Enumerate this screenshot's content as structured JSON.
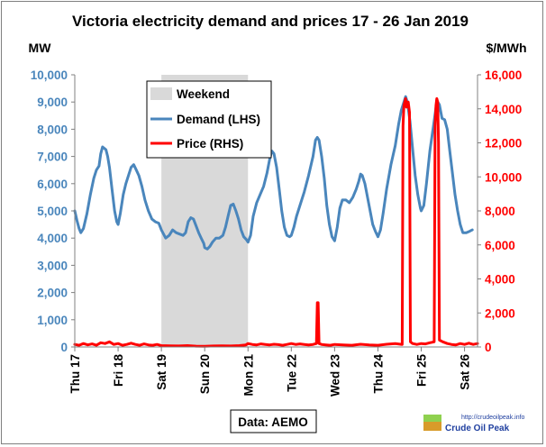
{
  "chart_data": {
    "type": "line",
    "title": "Victoria electricity demand and prices 17 - 26 Jan 2019",
    "y_left_label": "MW",
    "y_right_label": "$/MWh",
    "y_left_lim": [
      0,
      10000
    ],
    "y_right_lim": [
      0,
      16000
    ],
    "y_left_ticks": [
      "0",
      "1,000",
      "2,000",
      "3,000",
      "4,000",
      "5,000",
      "6,000",
      "7,000",
      "8,000",
      "9,000",
      "10,000"
    ],
    "y_right_ticks": [
      "0",
      "2,000",
      "4,000",
      "6,000",
      "8,000",
      "10,000",
      "12,000",
      "14,000",
      "16,000"
    ],
    "x_lim": [
      0,
      9.3
    ],
    "x_ticks": [
      "Thu 17",
      "Fri 18",
      "Sat 19",
      "Sun 20",
      "Mon 21",
      "Tue 22",
      "Wed 23",
      "Thu 24",
      "Fri 25",
      "Sat 26"
    ],
    "grid": false,
    "legend_position": "top-left",
    "weekend_band": {
      "label": "Weekend",
      "start": 2.0,
      "end": 4.0,
      "color": "#d9d9d9"
    },
    "series": [
      {
        "name": "Demand (LHS)",
        "axis": "left",
        "color": "#4a86bc",
        "points": [
          [
            0.0,
            5000
          ],
          [
            0.05,
            4650
          ],
          [
            0.1,
            4350
          ],
          [
            0.14,
            4200
          ],
          [
            0.2,
            4350
          ],
          [
            0.28,
            4900
          ],
          [
            0.36,
            5600
          ],
          [
            0.44,
            6200
          ],
          [
            0.5,
            6500
          ],
          [
            0.56,
            6650
          ],
          [
            0.6,
            7100
          ],
          [
            0.64,
            7350
          ],
          [
            0.68,
            7300
          ],
          [
            0.72,
            7250
          ],
          [
            0.76,
            7000
          ],
          [
            0.8,
            6600
          ],
          [
            0.86,
            5800
          ],
          [
            0.92,
            5000
          ],
          [
            0.97,
            4600
          ],
          [
            1.0,
            4500
          ],
          [
            1.05,
            4900
          ],
          [
            1.12,
            5600
          ],
          [
            1.18,
            6000
          ],
          [
            1.24,
            6300
          ],
          [
            1.3,
            6600
          ],
          [
            1.36,
            6700
          ],
          [
            1.42,
            6500
          ],
          [
            1.48,
            6300
          ],
          [
            1.55,
            5900
          ],
          [
            1.62,
            5400
          ],
          [
            1.7,
            5000
          ],
          [
            1.78,
            4700
          ],
          [
            1.86,
            4600
          ],
          [
            1.94,
            4550
          ],
          [
            2.0,
            4300
          ],
          [
            2.05,
            4150
          ],
          [
            2.1,
            4000
          ],
          [
            2.18,
            4100
          ],
          [
            2.26,
            4300
          ],
          [
            2.34,
            4200
          ],
          [
            2.42,
            4150
          ],
          [
            2.5,
            4100
          ],
          [
            2.56,
            4200
          ],
          [
            2.62,
            4600
          ],
          [
            2.68,
            4750
          ],
          [
            2.74,
            4700
          ],
          [
            2.8,
            4450
          ],
          [
            2.86,
            4200
          ],
          [
            2.92,
            4000
          ],
          [
            2.98,
            3800
          ],
          [
            3.0,
            3650
          ],
          [
            3.06,
            3600
          ],
          [
            3.12,
            3700
          ],
          [
            3.18,
            3850
          ],
          [
            3.26,
            4000
          ],
          [
            3.34,
            4000
          ],
          [
            3.42,
            4100
          ],
          [
            3.48,
            4400
          ],
          [
            3.54,
            4800
          ],
          [
            3.6,
            5200
          ],
          [
            3.66,
            5250
          ],
          [
            3.72,
            5000
          ],
          [
            3.78,
            4700
          ],
          [
            3.84,
            4300
          ],
          [
            3.9,
            4050
          ],
          [
            3.96,
            3950
          ],
          [
            4.0,
            3850
          ],
          [
            4.06,
            4100
          ],
          [
            4.12,
            4800
          ],
          [
            4.2,
            5300
          ],
          [
            4.28,
            5600
          ],
          [
            4.36,
            5900
          ],
          [
            4.44,
            6400
          ],
          [
            4.5,
            6900
          ],
          [
            4.55,
            7200
          ],
          [
            4.6,
            7100
          ],
          [
            4.66,
            6600
          ],
          [
            4.72,
            5800
          ],
          [
            4.78,
            5000
          ],
          [
            4.84,
            4400
          ],
          [
            4.9,
            4100
          ],
          [
            4.96,
            4050
          ],
          [
            5.0,
            4100
          ],
          [
            5.06,
            4400
          ],
          [
            5.12,
            4800
          ],
          [
            5.2,
            5200
          ],
          [
            5.3,
            5700
          ],
          [
            5.4,
            6300
          ],
          [
            5.5,
            7000
          ],
          [
            5.56,
            7600
          ],
          [
            5.6,
            7700
          ],
          [
            5.64,
            7600
          ],
          [
            5.7,
            7000
          ],
          [
            5.76,
            6200
          ],
          [
            5.82,
            5200
          ],
          [
            5.88,
            4500
          ],
          [
            5.94,
            4050
          ],
          [
            6.0,
            3900
          ],
          [
            6.06,
            4400
          ],
          [
            6.12,
            5100
          ],
          [
            6.18,
            5400
          ],
          [
            6.26,
            5400
          ],
          [
            6.34,
            5300
          ],
          [
            6.42,
            5500
          ],
          [
            6.5,
            5800
          ],
          [
            6.56,
            6100
          ],
          [
            6.6,
            6350
          ],
          [
            6.64,
            6300
          ],
          [
            6.7,
            6000
          ],
          [
            6.76,
            5500
          ],
          [
            6.82,
            5000
          ],
          [
            6.88,
            4500
          ],
          [
            6.94,
            4250
          ],
          [
            7.0,
            4050
          ],
          [
            7.06,
            4300
          ],
          [
            7.12,
            4900
          ],
          [
            7.2,
            5800
          ],
          [
            7.3,
            6700
          ],
          [
            7.4,
            7400
          ],
          [
            7.48,
            8200
          ],
          [
            7.54,
            8700
          ],
          [
            7.6,
            9000
          ],
          [
            7.64,
            9200
          ],
          [
            7.68,
            9000
          ],
          [
            7.74,
            8300
          ],
          [
            7.8,
            7300
          ],
          [
            7.86,
            6300
          ],
          [
            7.92,
            5600
          ],
          [
            7.98,
            5100
          ],
          [
            8.0,
            5000
          ],
          [
            8.06,
            5200
          ],
          [
            8.12,
            6000
          ],
          [
            8.2,
            7200
          ],
          [
            8.28,
            8100
          ],
          [
            8.34,
            8800
          ],
          [
            8.38,
            9000
          ],
          [
            8.42,
            8900
          ],
          [
            8.48,
            8400
          ],
          [
            8.54,
            8350
          ],
          [
            8.6,
            8000
          ],
          [
            8.66,
            7200
          ],
          [
            8.72,
            6400
          ],
          [
            8.78,
            5600
          ],
          [
            8.84,
            5000
          ],
          [
            8.9,
            4500
          ],
          [
            8.96,
            4200
          ],
          [
            9.04,
            4200
          ],
          [
            9.12,
            4250
          ],
          [
            9.18,
            4300
          ]
        ]
      },
      {
        "name": "Price (RHS)",
        "axis": "right",
        "color": "#ff0000",
        "points": [
          [
            0.0,
            150
          ],
          [
            0.1,
            100
          ],
          [
            0.2,
            200
          ],
          [
            0.3,
            120
          ],
          [
            0.4,
            180
          ],
          [
            0.5,
            100
          ],
          [
            0.6,
            250
          ],
          [
            0.7,
            200
          ],
          [
            0.8,
            300
          ],
          [
            0.9,
            150
          ],
          [
            1.0,
            200
          ],
          [
            1.1,
            100
          ],
          [
            1.2,
            150
          ],
          [
            1.3,
            220
          ],
          [
            1.4,
            150
          ],
          [
            1.5,
            100
          ],
          [
            1.6,
            180
          ],
          [
            1.7,
            120
          ],
          [
            1.8,
            100
          ],
          [
            1.9,
            150
          ],
          [
            2.0,
            80
          ],
          [
            2.2,
            70
          ],
          [
            2.4,
            60
          ],
          [
            2.6,
            80
          ],
          [
            2.8,
            50
          ],
          [
            3.0,
            40
          ],
          [
            3.2,
            60
          ],
          [
            3.4,
            70
          ],
          [
            3.6,
            60
          ],
          [
            3.8,
            80
          ],
          [
            3.95,
            120
          ],
          [
            4.0,
            200
          ],
          [
            4.1,
            150
          ],
          [
            4.2,
            120
          ],
          [
            4.3,
            180
          ],
          [
            4.4,
            150
          ],
          [
            4.5,
            120
          ],
          [
            4.6,
            160
          ],
          [
            4.7,
            140
          ],
          [
            4.8,
            100
          ],
          [
            4.9,
            150
          ],
          [
            5.0,
            200
          ],
          [
            5.1,
            150
          ],
          [
            5.2,
            180
          ],
          [
            5.3,
            150
          ],
          [
            5.4,
            120
          ],
          [
            5.5,
            150
          ],
          [
            5.58,
            200
          ],
          [
            5.6,
            2600
          ],
          [
            5.62,
            2600
          ],
          [
            5.64,
            200
          ],
          [
            5.7,
            150
          ],
          [
            5.8,
            120
          ],
          [
            5.9,
            100
          ],
          [
            6.0,
            150
          ],
          [
            6.2,
            120
          ],
          [
            6.4,
            100
          ],
          [
            6.6,
            160
          ],
          [
            6.8,
            120
          ],
          [
            7.0,
            100
          ],
          [
            7.2,
            160
          ],
          [
            7.4,
            200
          ],
          [
            7.56,
            150
          ],
          [
            7.58,
            13000
          ],
          [
            7.6,
            14200
          ],
          [
            7.64,
            14600
          ],
          [
            7.66,
            14100
          ],
          [
            7.7,
            14400
          ],
          [
            7.73,
            13800
          ],
          [
            7.75,
            300
          ],
          [
            7.8,
            200
          ],
          [
            7.9,
            150
          ],
          [
            8.0,
            200
          ],
          [
            8.1,
            180
          ],
          [
            8.2,
            250
          ],
          [
            8.3,
            300
          ],
          [
            8.32,
            13000
          ],
          [
            8.34,
            14200
          ],
          [
            8.36,
            14600
          ],
          [
            8.38,
            14400
          ],
          [
            8.4,
            12000
          ],
          [
            8.42,
            400
          ],
          [
            8.5,
            300
          ],
          [
            8.6,
            200
          ],
          [
            8.7,
            150
          ],
          [
            8.8,
            120
          ],
          [
            8.9,
            200
          ],
          [
            9.0,
            150
          ],
          [
            9.1,
            220
          ],
          [
            9.2,
            150
          ],
          [
            9.3,
            200
          ]
        ]
      }
    ]
  },
  "source_label": "Data: AEMO",
  "logo": {
    "url": "http://crudeoilpeak.info",
    "name": "Crude Oil Peak"
  }
}
